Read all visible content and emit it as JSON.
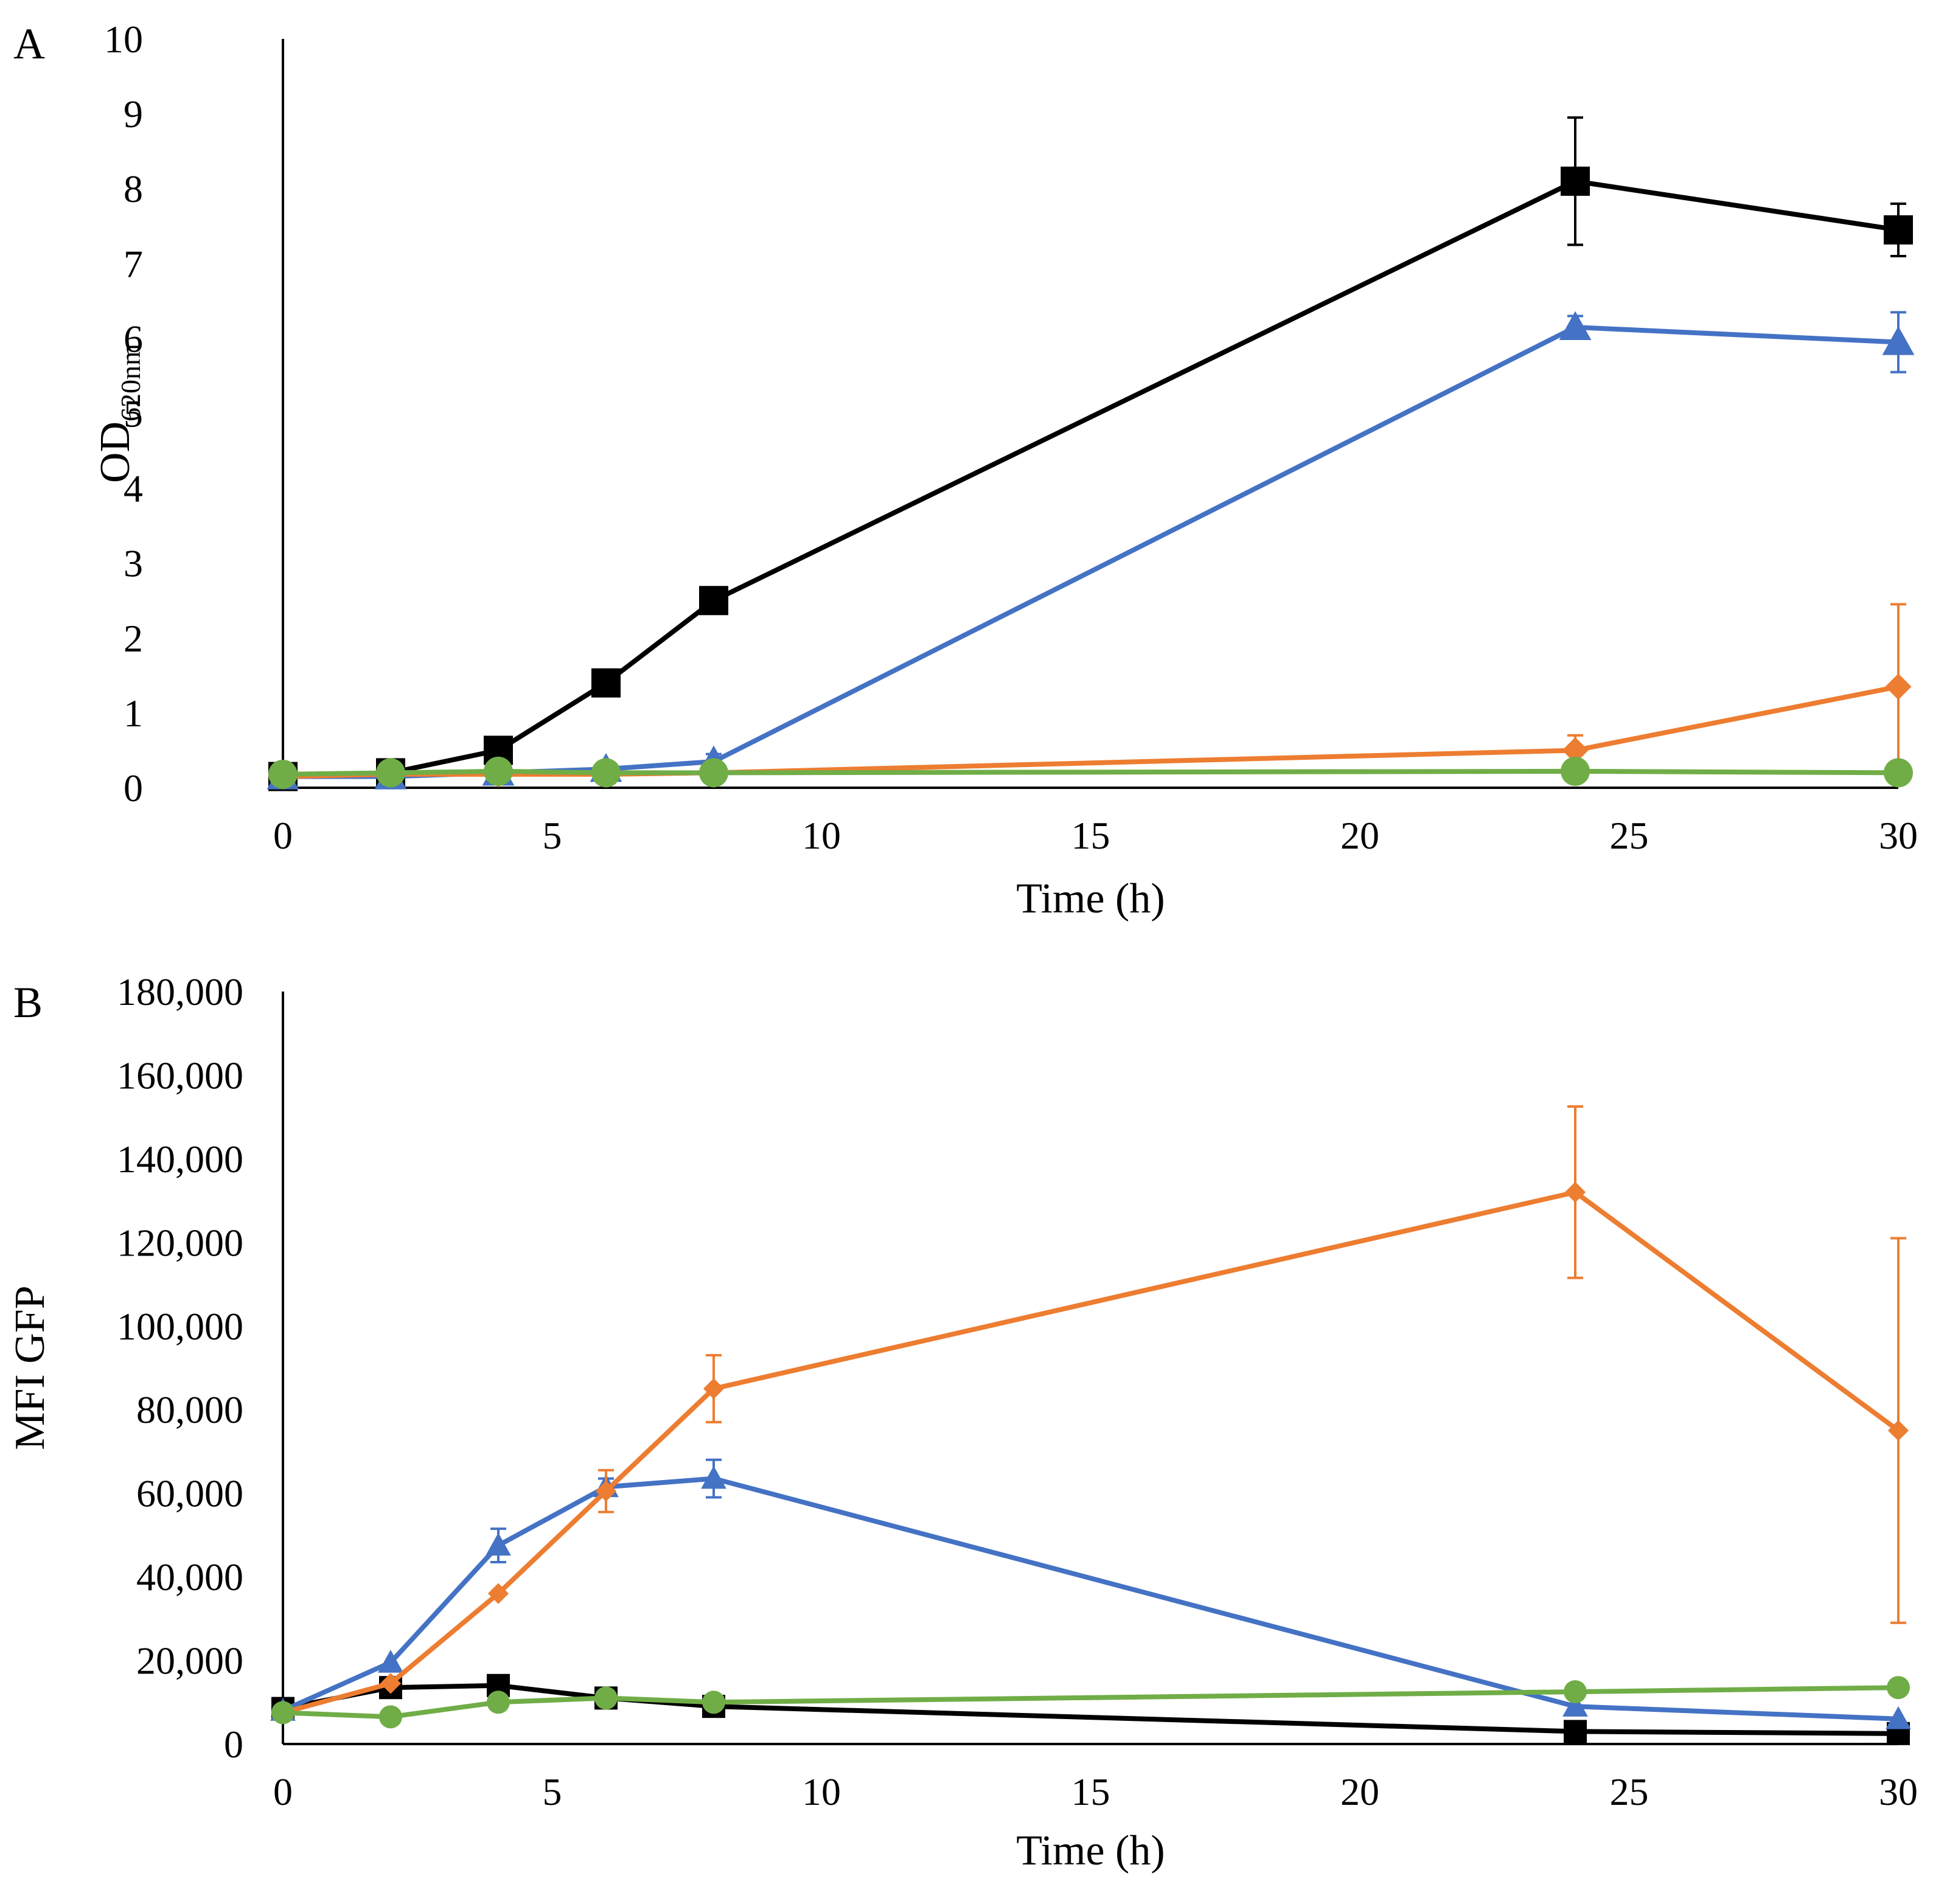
{
  "chart_data": [
    {
      "panel": "A",
      "type": "line",
      "title": "",
      "xlabel": "Time (h)",
      "ylabel": "OD",
      "ylabel_sub": "620nm",
      "xlim": [
        0,
        30
      ],
      "ylim": [
        0,
        10
      ],
      "xticks": [
        0,
        5,
        10,
        15,
        20,
        25,
        30
      ],
      "xtick_labels": [
        "0",
        "5",
        "10",
        "15",
        "20",
        "25",
        "30"
      ],
      "yticks": [
        0,
        1,
        2,
        3,
        4,
        5,
        6,
        7,
        8,
        9,
        10
      ],
      "ytick_labels": [
        "0",
        "1",
        "2",
        "3",
        "4",
        "5",
        "6",
        "7",
        "8",
        "9",
        "10"
      ],
      "grid": false,
      "legend": "none",
      "series": [
        {
          "name": "black",
          "color": "#000000",
          "marker": "square",
          "x": [
            0,
            2,
            4,
            6,
            8,
            24,
            30
          ],
          "y": [
            0.15,
            0.2,
            0.5,
            1.4,
            2.5,
            8.1,
            7.45
          ],
          "err": [
            0,
            0,
            0,
            0,
            0,
            0.85,
            0.35
          ]
        },
        {
          "name": "blue",
          "color": "#4472C4",
          "marker": "triangle",
          "x": [
            0,
            2,
            4,
            6,
            8,
            24,
            30
          ],
          "y": [
            0.15,
            0.15,
            0.2,
            0.25,
            0.35,
            6.15,
            5.95
          ],
          "err": [
            0,
            0,
            0,
            0,
            0.1,
            0.15,
            0.4
          ]
        },
        {
          "name": "orange",
          "color": "#ED7D31",
          "marker": "diamond",
          "x": [
            0,
            2,
            4,
            6,
            8,
            24,
            30
          ],
          "y": [
            0.15,
            0.18,
            0.18,
            0.18,
            0.2,
            0.5,
            1.35
          ],
          "err": [
            0,
            0,
            0,
            0,
            0,
            0.2,
            1.1
          ]
        },
        {
          "name": "green",
          "color": "#70AD47",
          "marker": "circle",
          "x": [
            0,
            2,
            4,
            6,
            8,
            24,
            30
          ],
          "y": [
            0.18,
            0.2,
            0.22,
            0.2,
            0.2,
            0.22,
            0.2
          ],
          "err": [
            0,
            0,
            0,
            0,
            0,
            0,
            0
          ]
        }
      ]
    },
    {
      "panel": "B",
      "type": "line",
      "title": "",
      "xlabel": "Time (h)",
      "ylabel": "MFI GFP",
      "ylabel_sub": "",
      "xlim": [
        0,
        30
      ],
      "ylim": [
        0,
        180000
      ],
      "xticks": [
        0,
        5,
        10,
        15,
        20,
        25,
        30
      ],
      "xtick_labels": [
        "0",
        "5",
        "10",
        "15",
        "20",
        "25",
        "30"
      ],
      "yticks": [
        0,
        20000,
        40000,
        60000,
        80000,
        100000,
        120000,
        140000,
        160000,
        180000
      ],
      "ytick_labels": [
        "0",
        "20,000",
        "40,000",
        "60,000",
        "80,000",
        "100,000",
        "120,000",
        "140,000",
        "160,000",
        "180,000"
      ],
      "grid": false,
      "legend": "none",
      "series": [
        {
          "name": "black",
          "color": "#000000",
          "marker": "square",
          "x": [
            0,
            2,
            4,
            6,
            8,
            24,
            30
          ],
          "y": [
            8500,
            13500,
            14000,
            11000,
            9000,
            3000,
            2500
          ],
          "err": [
            0,
            0,
            0,
            0,
            0,
            0,
            0
          ]
        },
        {
          "name": "blue",
          "color": "#4472C4",
          "marker": "triangle",
          "x": [
            0,
            2,
            4,
            6,
            8,
            24,
            30
          ],
          "y": [
            8000,
            19500,
            47500,
            61500,
            63500,
            9000,
            6000
          ],
          "err": [
            0,
            0,
            4000,
            2000,
            4500,
            0,
            0
          ]
        },
        {
          "name": "orange",
          "color": "#ED7D31",
          "marker": "diamond",
          "x": [
            0,
            2,
            4,
            6,
            8,
            24,
            30
          ],
          "y": [
            7500,
            14500,
            36000,
            60500,
            85000,
            132000,
            75000
          ],
          "err": [
            0,
            0,
            0,
            5000,
            8000,
            20500,
            46000
          ]
        },
        {
          "name": "green",
          "color": "#70AD47",
          "marker": "circle",
          "x": [
            0,
            2,
            4,
            6,
            8,
            24,
            30
          ],
          "y": [
            7500,
            6500,
            10000,
            11000,
            10000,
            12500,
            13500
          ],
          "err": [
            0,
            0,
            0,
            0,
            0,
            0,
            0
          ]
        }
      ]
    }
  ]
}
